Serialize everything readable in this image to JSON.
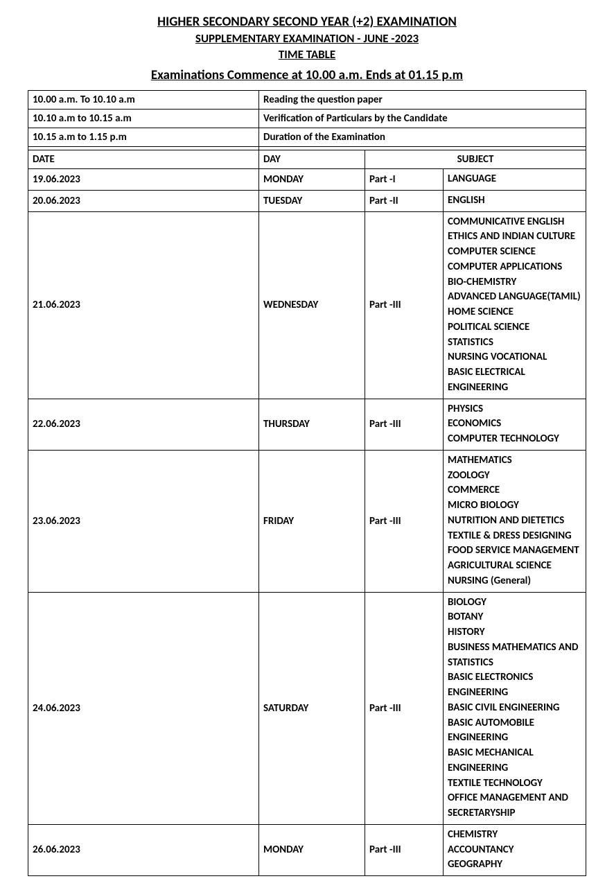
{
  "header": {
    "line1": "HIGHER SECONDARY SECOND YEAR (+2) EXAMINATION",
    "line2": "SUPPLEMENTARY EXAMINATION - JUNE -2023",
    "line3": "TIME TABLE",
    "line4": "Examinations Commence at 10.00 a.m. Ends at 01.15 p.m"
  },
  "info": [
    {
      "time": "10.00 a.m. To 10.10 a.m",
      "desc": "Reading the question paper"
    },
    {
      "time": "10.10 a.m to 10.15 a.m",
      "desc": "Verification of Particulars by the Candidate"
    },
    {
      "time": "10.15 a.m to 1.15 p.m",
      "desc": "Duration of the Examination"
    }
  ],
  "columns": {
    "date": "DATE",
    "day": "DAY",
    "subject": "SUBJECT"
  },
  "rows": [
    {
      "date": "19.06.2023",
      "day": "MONDAY",
      "part": "Part -I",
      "subjects": [
        "LANGUAGE"
      ]
    },
    {
      "date": "20.06.2023",
      "day": "TUESDAY",
      "part": "Part -II",
      "subjects": [
        "ENGLISH"
      ]
    },
    {
      "date": "21.06.2023",
      "day": "WEDNESDAY",
      "part": "Part -III",
      "subjects": [
        "COMMUNICATIVE ENGLISH",
        "ETHICS AND INDIAN CULTURE",
        "COMPUTER SCIENCE",
        "COMPUTER APPLICATIONS",
        "BIO-CHEMISTRY",
        "ADVANCED LANGUAGE(TAMIL)",
        "HOME SCIENCE",
        "POLITICAL SCIENCE",
        "STATISTICS",
        "NURSING VOCATIONAL",
        "BASIC ELECTRICAL ENGINEERING"
      ]
    },
    {
      "date": "22.06.2023",
      "day": "THURSDAY",
      "part": "Part -III",
      "subjects": [
        "PHYSICS",
        "ECONOMICS",
        "COMPUTER TECHNOLOGY"
      ]
    },
    {
      "date": "23.06.2023",
      "day": "FRIDAY",
      "part": "Part -III",
      "subjects": [
        "MATHEMATICS",
        "ZOOLOGY",
        "COMMERCE",
        "MICRO BIOLOGY",
        "NUTRITION AND DIETETICS",
        "TEXTILE & DRESS DESIGNING",
        "FOOD SERVICE MANAGEMENT",
        "AGRICULTURAL SCIENCE",
        "NURSING (General)"
      ]
    },
    {
      "date": "24.06.2023",
      "day": "SATURDAY",
      "part": "Part -III",
      "subjects": [
        "BIOLOGY",
        "BOTANY",
        "HISTORY",
        "BUSINESS MATHEMATICS AND STATISTICS",
        "BASIC ELECTRONICS ENGINEERING",
        "BASIC CIVIL ENGINEERING",
        "BASIC AUTOMOBILE ENGINEERING",
        "BASIC MECHANICAL ENGINEERING",
        "TEXTILE TECHNOLOGY",
        "OFFICE MANAGEMENT AND SECRETARYSHIP"
      ]
    },
    {
      "date": "26.06.2023",
      "day": "MONDAY",
      "part": "Part -III",
      "subjects": [
        "CHEMISTRY",
        "ACCOUNTANCY",
        "GEOGRAPHY"
      ]
    }
  ]
}
